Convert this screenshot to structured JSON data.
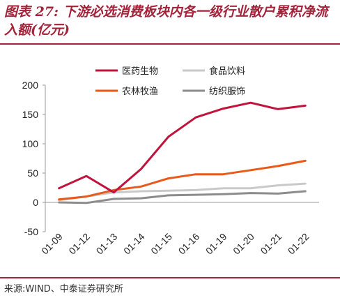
{
  "header": {
    "title": "图表 27:  下游必选消费板块内各一级行业散户累积净流入额(亿元)"
  },
  "footer": {
    "source": "来源:WIND、中泰证券研究所"
  },
  "chart_data": {
    "type": "line",
    "title": "图表 27:  下游必选消费板块内各一级行业散户累积净流入额(亿元)",
    "xlabel": "",
    "ylabel": "",
    "categories": [
      "01-09",
      "01-12",
      "01-13",
      "01-14",
      "01-15",
      "01-16",
      "01-19",
      "01-20",
      "01-21",
      "01-22"
    ],
    "ylim": [
      -50,
      200
    ],
    "yticks": [
      -50,
      0,
      50,
      100,
      150,
      200
    ],
    "grid": false,
    "legend_position": "top",
    "series": [
      {
        "name": "医药生物",
        "color": "#c0143c",
        "values": [
          24,
          45,
          17,
          57,
          112,
          145,
          160,
          170,
          159,
          165
        ]
      },
      {
        "name": "食品饮料",
        "color": "#c9c9c9",
        "values": [
          4,
          10,
          17,
          19,
          20,
          21,
          24,
          24,
          29,
          32
        ]
      },
      {
        "name": "农林牧渔",
        "color": "#e8591a",
        "values": [
          5,
          10,
          21,
          27,
          41,
          48,
          48,
          55,
          62,
          71
        ]
      },
      {
        "name": "纺织服饰",
        "color": "#8c8c8c",
        "values": [
          0,
          -1,
          6,
          7,
          12,
          13,
          14,
          16,
          15,
          19
        ]
      }
    ]
  }
}
